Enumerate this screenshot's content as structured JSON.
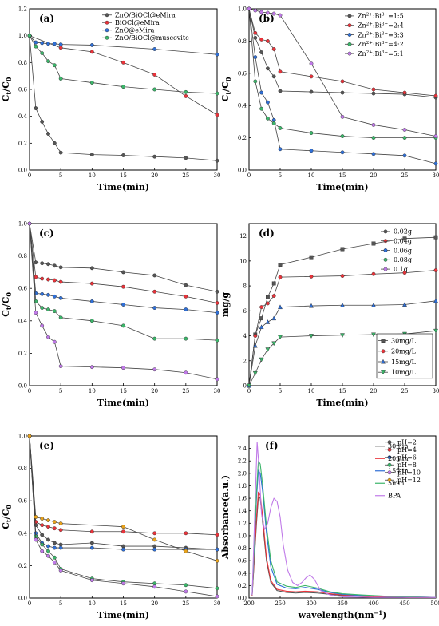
{
  "chart_data": [
    {
      "type": "line",
      "panel_label": "(a)",
      "xlabel": "Time(min)",
      "ylabel": "C_t/C_0",
      "xlim": [
        0,
        30
      ],
      "ylim": [
        0,
        1.2
      ],
      "xticks": [
        0,
        5,
        10,
        15,
        20,
        25,
        30
      ],
      "yticks": [
        0.0,
        0.2,
        0.4,
        0.6,
        0.8,
        1.0,
        1.2
      ],
      "legend": "top-right",
      "series": [
        {
          "name": "ZnO/BiOCl@eMira",
          "color": "#555555",
          "x": [
            0,
            1,
            2,
            3,
            4,
            5,
            10,
            15,
            20,
            25,
            30
          ],
          "values": [
            1.0,
            0.46,
            0.36,
            0.27,
            0.2,
            0.13,
            0.115,
            0.11,
            0.1,
            0.09,
            0.07
          ]
        },
        {
          "name": "BiOCl@eMira",
          "color": "#e8333a",
          "x": [
            0,
            5,
            10,
            15,
            20,
            25,
            30
          ],
          "values": [
            1.0,
            0.91,
            0.88,
            0.8,
            0.71,
            0.55,
            0.41
          ]
        },
        {
          "name": "ZnO@eMira",
          "color": "#2f6fd6",
          "x": [
            0,
            1,
            2,
            3,
            4,
            5,
            10,
            20,
            30
          ],
          "values": [
            1.0,
            0.95,
            0.945,
            0.94,
            0.94,
            0.935,
            0.93,
            0.9,
            0.86
          ]
        },
        {
          "name": "ZnO/BiOCl@muscovite",
          "color": "#3cb56a",
          "x": [
            0,
            1,
            2,
            3,
            4,
            5,
            10,
            15,
            20,
            25,
            30
          ],
          "values": [
            1.0,
            0.92,
            0.87,
            0.81,
            0.78,
            0.68,
            0.65,
            0.62,
            0.6,
            0.58,
            0.57
          ]
        }
      ]
    },
    {
      "type": "line",
      "panel_label": "(b)",
      "xlabel": "Time(min)",
      "ylabel": "C_t/C_0",
      "xlim": [
        0,
        30
      ],
      "ylim": [
        0,
        1.0
      ],
      "xticks": [
        0,
        5,
        10,
        15,
        20,
        25,
        30
      ],
      "yticks": [
        0.0,
        0.2,
        0.4,
        0.6,
        0.8,
        1.0
      ],
      "legend": "top-right",
      "series": [
        {
          "name": "Zn²⁺:Bi³⁺=1:5",
          "color": "#555555",
          "x": [
            0,
            1,
            2,
            3,
            4,
            5,
            10,
            15,
            20,
            25,
            30
          ],
          "values": [
            1.0,
            0.82,
            0.73,
            0.63,
            0.58,
            0.49,
            0.485,
            0.48,
            0.475,
            0.47,
            0.45
          ]
        },
        {
          "name": "Zn²⁺:Bi³⁺=2:4",
          "color": "#e8333a",
          "x": [
            0,
            1,
            2,
            3,
            4,
            5,
            10,
            15,
            20,
            25,
            30
          ],
          "values": [
            1.0,
            0.85,
            0.81,
            0.8,
            0.75,
            0.61,
            0.58,
            0.55,
            0.5,
            0.48,
            0.46
          ]
        },
        {
          "name": "Zn²⁺:Bi³⁺=3:3",
          "color": "#2f6fd6",
          "x": [
            0,
            1,
            2,
            3,
            4,
            5,
            10,
            15,
            20,
            25,
            30
          ],
          "values": [
            1.0,
            0.7,
            0.48,
            0.42,
            0.31,
            0.13,
            0.12,
            0.11,
            0.1,
            0.09,
            0.04
          ]
        },
        {
          "name": "Zn²⁺:Bi³⁺=4:2",
          "color": "#3cb56a",
          "x": [
            0,
            1,
            2,
            3,
            4,
            5,
            10,
            15,
            20,
            25,
            30
          ],
          "values": [
            1.0,
            0.55,
            0.38,
            0.32,
            0.29,
            0.26,
            0.23,
            0.21,
            0.2,
            0.2,
            0.2
          ]
        },
        {
          "name": "Zn²⁺:Bi³⁺=5:1",
          "color": "#c07ae8",
          "x": [
            0,
            1,
            2,
            3,
            4,
            5,
            10,
            15,
            20,
            25,
            30
          ],
          "values": [
            1.0,
            0.99,
            0.98,
            0.975,
            0.97,
            0.96,
            0.66,
            0.33,
            0.28,
            0.25,
            0.21
          ]
        }
      ]
    },
    {
      "type": "line",
      "panel_label": "(c)",
      "xlabel": "Time(min)",
      "ylabel": "C_t/C_0",
      "xlim": [
        0,
        30
      ],
      "ylim": [
        0,
        1.0
      ],
      "xticks": [
        0,
        5,
        10,
        15,
        20,
        25,
        30
      ],
      "yticks": [
        0.0,
        0.2,
        0.4,
        0.6,
        0.8,
        1.0
      ],
      "legend": "top-right",
      "series": [
        {
          "name": "0.02g",
          "color": "#555555",
          "x": [
            0,
            1,
            2,
            3,
            4,
            5,
            10,
            15,
            20,
            25,
            30
          ],
          "values": [
            1.0,
            0.76,
            0.755,
            0.75,
            0.74,
            0.73,
            0.725,
            0.7,
            0.68,
            0.62,
            0.58
          ]
        },
        {
          "name": "0.04g",
          "color": "#e8333a",
          "x": [
            0,
            1,
            2,
            3,
            4,
            5,
            10,
            15,
            20,
            25,
            30
          ],
          "values": [
            1.0,
            0.67,
            0.66,
            0.655,
            0.65,
            0.64,
            0.63,
            0.61,
            0.58,
            0.55,
            0.51
          ]
        },
        {
          "name": "0.06g",
          "color": "#2f6fd6",
          "x": [
            0,
            1,
            2,
            3,
            4,
            5,
            10,
            15,
            20,
            25,
            30
          ],
          "values": [
            1.0,
            0.57,
            0.565,
            0.56,
            0.55,
            0.54,
            0.52,
            0.5,
            0.48,
            0.47,
            0.45
          ]
        },
        {
          "name": "0.08g",
          "color": "#3cb56a",
          "x": [
            0,
            1,
            2,
            3,
            4,
            5,
            10,
            15,
            20,
            25,
            30
          ],
          "values": [
            1.0,
            0.52,
            0.48,
            0.47,
            0.46,
            0.42,
            0.4,
            0.37,
            0.29,
            0.29,
            0.28
          ]
        },
        {
          "name": "0.1g",
          "color": "#c07ae8",
          "x": [
            0,
            1,
            2,
            3,
            4,
            5,
            10,
            15,
            20,
            25,
            30
          ],
          "values": [
            1.0,
            0.45,
            0.37,
            0.3,
            0.27,
            0.12,
            0.115,
            0.11,
            0.1,
            0.08,
            0.04
          ]
        }
      ]
    },
    {
      "type": "line",
      "panel_label": "(d)",
      "xlabel": "Time(min)",
      "ylabel": "mg/g",
      "xlim": [
        0,
        30
      ],
      "ylim": [
        0,
        13
      ],
      "xticks": [
        0,
        5,
        10,
        15,
        20,
        25,
        30
      ],
      "yticks": [
        0,
        2,
        4,
        6,
        8,
        10,
        12
      ],
      "legend": "bottom-right",
      "series": [
        {
          "name": "30mg/L",
          "color": "#555555",
          "marker": "square",
          "x": [
            0,
            1,
            2,
            3,
            4,
            5,
            10,
            15,
            20,
            25,
            30
          ],
          "values": [
            0,
            4.1,
            5.4,
            7.1,
            8.2,
            9.7,
            10.3,
            10.95,
            11.4,
            11.8,
            11.9
          ]
        },
        {
          "name": "20mg/L",
          "color": "#e8333a",
          "marker": "circle",
          "x": [
            0,
            1,
            2,
            3,
            4,
            5,
            10,
            15,
            20,
            25,
            30
          ],
          "values": [
            0,
            4.0,
            6.3,
            6.6,
            7.2,
            8.7,
            8.75,
            8.8,
            8.95,
            9.05,
            9.25
          ]
        },
        {
          "name": "15mg/L",
          "color": "#2f6fd6",
          "marker": "triangle-up",
          "x": [
            0,
            1,
            2,
            3,
            4,
            5,
            10,
            15,
            20,
            25,
            30
          ],
          "values": [
            0,
            3.2,
            4.7,
            5.1,
            5.4,
            6.3,
            6.4,
            6.45,
            6.45,
            6.5,
            6.8
          ]
        },
        {
          "name": "10mg/L",
          "color": "#3cb56a",
          "marker": "triangle-down",
          "x": [
            0,
            1,
            2,
            3,
            4,
            5,
            10,
            15,
            20,
            25,
            30
          ],
          "values": [
            0,
            1.0,
            2.1,
            2.9,
            3.4,
            3.9,
            4.0,
            4.05,
            4.1,
            4.15,
            4.4
          ]
        }
      ]
    },
    {
      "type": "line",
      "panel_label": "(e)",
      "xlabel": "Time(min)",
      "ylabel": "C_t/C_0",
      "xlim": [
        0,
        30
      ],
      "ylim": [
        0,
        1.0
      ],
      "xticks": [
        0,
        5,
        10,
        15,
        20,
        25,
        30
      ],
      "yticks": [
        0.0,
        0.2,
        0.4,
        0.6,
        0.8,
        1.0
      ],
      "legend": "top-right",
      "series": [
        {
          "name": "pH=2",
          "color": "#555555",
          "x": [
            0,
            1,
            2,
            3,
            4,
            5,
            10,
            15,
            20,
            25,
            30
          ],
          "values": [
            1.0,
            0.45,
            0.39,
            0.36,
            0.34,
            0.33,
            0.34,
            0.32,
            0.32,
            0.31,
            0.3
          ]
        },
        {
          "name": "pH=4",
          "color": "#e8333a",
          "x": [
            0,
            1,
            2,
            3,
            4,
            5,
            10,
            15,
            20,
            25,
            30
          ],
          "values": [
            1.0,
            0.47,
            0.45,
            0.44,
            0.43,
            0.42,
            0.41,
            0.41,
            0.4,
            0.4,
            0.39
          ]
        },
        {
          "name": "pH=6",
          "color": "#2f6fd6",
          "x": [
            0,
            1,
            2,
            3,
            4,
            5,
            10,
            15,
            20,
            25,
            30
          ],
          "values": [
            1.0,
            0.4,
            0.34,
            0.32,
            0.31,
            0.31,
            0.31,
            0.3,
            0.3,
            0.3,
            0.3
          ]
        },
        {
          "name": "pH=8",
          "color": "#3cb56a",
          "x": [
            0,
            1,
            2,
            3,
            4,
            5,
            10,
            15,
            20,
            25,
            30
          ],
          "values": [
            1.0,
            0.38,
            0.33,
            0.29,
            0.25,
            0.18,
            0.12,
            0.1,
            0.09,
            0.08,
            0.06
          ]
        },
        {
          "name": "pH=10",
          "color": "#c07ae8",
          "x": [
            0,
            1,
            2,
            3,
            4,
            5,
            10,
            15,
            20,
            25,
            30
          ],
          "values": [
            1.0,
            0.36,
            0.29,
            0.26,
            0.22,
            0.17,
            0.11,
            0.09,
            0.07,
            0.04,
            0.01
          ]
        },
        {
          "name": "pH=12",
          "color": "#e8a21b",
          "x": [
            0,
            1,
            2,
            3,
            4,
            5,
            15,
            20,
            25,
            30
          ],
          "values": [
            1.0,
            0.5,
            0.49,
            0.48,
            0.47,
            0.46,
            0.44,
            0.36,
            0.29,
            0.23
          ]
        }
      ]
    },
    {
      "type": "line",
      "panel_label": "(f)",
      "xlabel": "wavelength(nm⁻¹)",
      "ylabel": "Absorbance(a.u.)",
      "xlim": [
        200,
        500
      ],
      "ylim": [
        0,
        2.6
      ],
      "xticks": [
        200,
        250,
        300,
        350,
        400,
        450,
        500
      ],
      "yticks": [
        0.0,
        0.2,
        0.4,
        0.6,
        0.8,
        1.0,
        1.2,
        1.4,
        1.6,
        1.8,
        2.0,
        2.2,
        2.4
      ],
      "legend": "top-right",
      "series": [
        {
          "name": "30min",
          "color": "#555555",
          "x": [
            205,
            212,
            215,
            218,
            222,
            228,
            235,
            245,
            260,
            275,
            290,
            310,
            330,
            350,
            380,
            420,
            460,
            500
          ],
          "values": [
            0.04,
            1.2,
            1.62,
            1.6,
            1.2,
            0.6,
            0.25,
            0.12,
            0.09,
            0.08,
            0.09,
            0.08,
            0.06,
            0.04,
            0.03,
            0.02,
            0.01,
            0.01
          ]
        },
        {
          "name": "20min",
          "color": "#e8333a",
          "x": [
            205,
            212,
            215,
            218,
            222,
            228,
            235,
            245,
            260,
            275,
            290,
            310,
            330,
            350,
            380,
            420,
            460,
            500
          ],
          "values": [
            0.04,
            1.3,
            1.7,
            1.65,
            1.3,
            0.65,
            0.28,
            0.14,
            0.11,
            0.1,
            0.11,
            0.1,
            0.07,
            0.05,
            0.03,
            0.02,
            0.01,
            0.01
          ]
        },
        {
          "name": "15min",
          "color": "#2f6fd6",
          "x": [
            205,
            212,
            215,
            218,
            222,
            228,
            235,
            245,
            260,
            275,
            290,
            310,
            330,
            350,
            380,
            420,
            460,
            500
          ],
          "values": [
            0.05,
            1.6,
            2.05,
            2.0,
            1.7,
            1.05,
            0.5,
            0.22,
            0.16,
            0.15,
            0.17,
            0.14,
            0.09,
            0.06,
            0.04,
            0.03,
            0.02,
            0.01
          ]
        },
        {
          "name": "5min",
          "color": "#3cb56a",
          "x": [
            205,
            212,
            215,
            218,
            222,
            228,
            235,
            245,
            260,
            275,
            290,
            310,
            330,
            350,
            380,
            420,
            460,
            500
          ],
          "values": [
            0.05,
            1.7,
            2.2,
            2.15,
            1.8,
            1.15,
            0.6,
            0.26,
            0.19,
            0.17,
            0.2,
            0.16,
            0.1,
            0.07,
            0.05,
            0.03,
            0.02,
            0.01
          ]
        },
        {
          "name": "BPA",
          "color": "#c07ae8",
          "x": [
            205,
            210,
            213,
            216,
            220,
            225,
            230,
            235,
            240,
            245,
            250,
            255,
            262,
            270,
            278,
            285,
            292,
            298,
            305,
            315,
            330,
            350,
            400,
            450,
            500
          ],
          "values": [
            0.05,
            1.6,
            2.5,
            2.1,
            1.35,
            1.1,
            1.2,
            1.45,
            1.6,
            1.55,
            1.3,
            0.85,
            0.45,
            0.25,
            0.2,
            0.25,
            0.33,
            0.37,
            0.3,
            0.12,
            0.05,
            0.02,
            0.01,
            0.01,
            0.01
          ]
        }
      ]
    }
  ]
}
